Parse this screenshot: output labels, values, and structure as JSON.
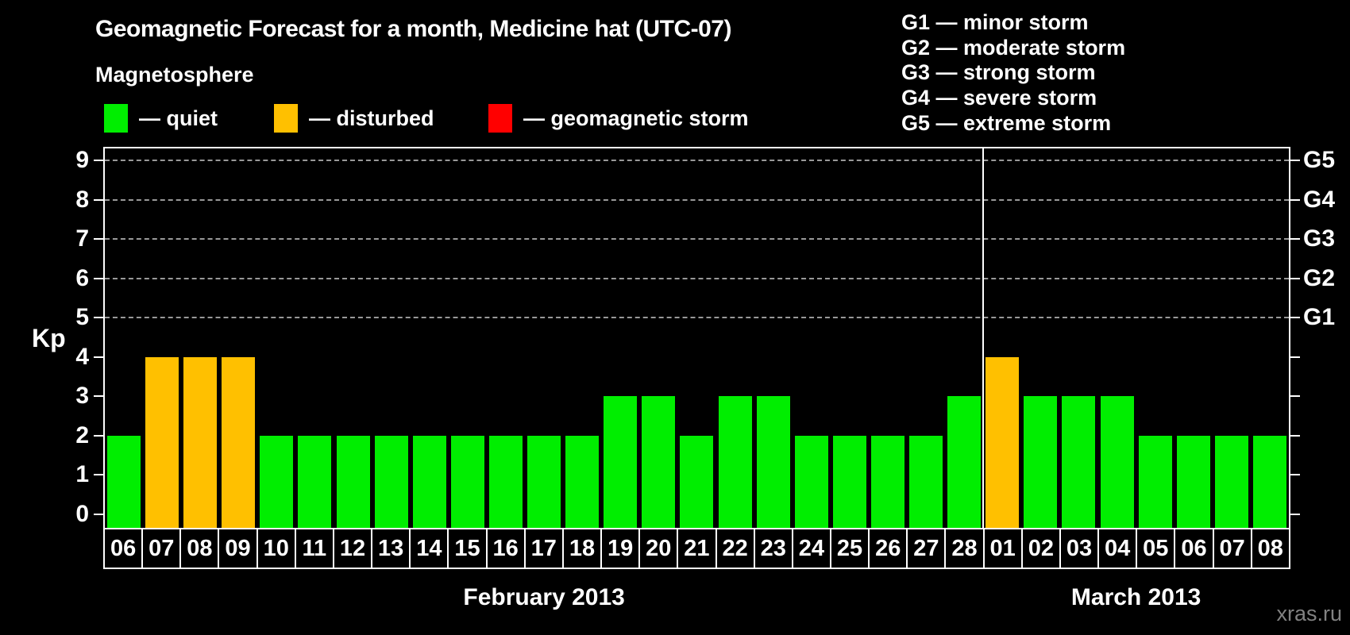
{
  "header": {
    "title": "Geomagnetic Forecast for a month, Medicine hat (UTC-07)",
    "subtitle": "Magnetosphere"
  },
  "legend": {
    "items": [
      {
        "status": "quiet",
        "label": "— quiet",
        "color": "#00ee00"
      },
      {
        "status": "disturbed",
        "label": "— disturbed",
        "color": "#ffc000"
      },
      {
        "status": "storm",
        "label": "— geomagnetic storm",
        "color": "#ff0000"
      }
    ]
  },
  "storm_scale": {
    "items": [
      "G1 — minor storm",
      "G2 — moderate storm",
      "G3 — strong storm",
      "G4 — severe storm",
      "G5 — extreme storm"
    ]
  },
  "chart_data": {
    "type": "bar",
    "title": "Geomagnetic Forecast for a month, Medicine hat (UTC-07)",
    "ylabel": "Kp",
    "ylim": [
      0,
      9
    ],
    "yticks": [
      0,
      1,
      2,
      3,
      4,
      5,
      6,
      7,
      8,
      9
    ],
    "gridlines_at": [
      5,
      6,
      7,
      8,
      9
    ],
    "grid_on": true,
    "grid_color": "#999999",
    "axis_color": "#ffffff",
    "background": "#000000",
    "right_axis": [
      {
        "kp": 5,
        "label": "G1"
      },
      {
        "kp": 6,
        "label": "G2"
      },
      {
        "kp": 7,
        "label": "G3"
      },
      {
        "kp": 8,
        "label": "G4"
      },
      {
        "kp": 9,
        "label": "G5"
      }
    ],
    "months": [
      {
        "label": "February 2013",
        "days": 23
      },
      {
        "label": "March 2013",
        "days": 8
      }
    ],
    "bars": [
      {
        "day": "06",
        "month": "February 2013",
        "kp": 2,
        "status": "quiet"
      },
      {
        "day": "07",
        "month": "February 2013",
        "kp": 4,
        "status": "disturbed"
      },
      {
        "day": "08",
        "month": "February 2013",
        "kp": 4,
        "status": "disturbed"
      },
      {
        "day": "09",
        "month": "February 2013",
        "kp": 4,
        "status": "disturbed"
      },
      {
        "day": "10",
        "month": "February 2013",
        "kp": 2,
        "status": "quiet"
      },
      {
        "day": "11",
        "month": "February 2013",
        "kp": 2,
        "status": "quiet"
      },
      {
        "day": "12",
        "month": "February 2013",
        "kp": 2,
        "status": "quiet"
      },
      {
        "day": "13",
        "month": "February 2013",
        "kp": 2,
        "status": "quiet"
      },
      {
        "day": "14",
        "month": "February 2013",
        "kp": 2,
        "status": "quiet"
      },
      {
        "day": "15",
        "month": "February 2013",
        "kp": 2,
        "status": "quiet"
      },
      {
        "day": "16",
        "month": "February 2013",
        "kp": 2,
        "status": "quiet"
      },
      {
        "day": "17",
        "month": "February 2013",
        "kp": 2,
        "status": "quiet"
      },
      {
        "day": "18",
        "month": "February 2013",
        "kp": 2,
        "status": "quiet"
      },
      {
        "day": "19",
        "month": "February 2013",
        "kp": 3,
        "status": "quiet"
      },
      {
        "day": "20",
        "month": "February 2013",
        "kp": 3,
        "status": "quiet"
      },
      {
        "day": "21",
        "month": "February 2013",
        "kp": 2,
        "status": "quiet"
      },
      {
        "day": "22",
        "month": "February 2013",
        "kp": 3,
        "status": "quiet"
      },
      {
        "day": "23",
        "month": "February 2013",
        "kp": 3,
        "status": "quiet"
      },
      {
        "day": "24",
        "month": "February 2013",
        "kp": 2,
        "status": "quiet"
      },
      {
        "day": "25",
        "month": "February 2013",
        "kp": 2,
        "status": "quiet"
      },
      {
        "day": "26",
        "month": "February 2013",
        "kp": 2,
        "status": "quiet"
      },
      {
        "day": "27",
        "month": "February 2013",
        "kp": 2,
        "status": "quiet"
      },
      {
        "day": "28",
        "month": "February 2013",
        "kp": 3,
        "status": "quiet"
      },
      {
        "day": "01",
        "month": "March 2013",
        "kp": 4,
        "status": "disturbed"
      },
      {
        "day": "02",
        "month": "March 2013",
        "kp": 3,
        "status": "quiet"
      },
      {
        "day": "03",
        "month": "March 2013",
        "kp": 3,
        "status": "quiet"
      },
      {
        "day": "04",
        "month": "March 2013",
        "kp": 3,
        "status": "quiet"
      },
      {
        "day": "05",
        "month": "March 2013",
        "kp": 2,
        "status": "quiet"
      },
      {
        "day": "06",
        "month": "March 2013",
        "kp": 2,
        "status": "quiet"
      },
      {
        "day": "07",
        "month": "March 2013",
        "kp": 2,
        "status": "quiet"
      },
      {
        "day": "08",
        "month": "March 2013",
        "kp": 2,
        "status": "quiet"
      }
    ]
  },
  "watermark": "xras.ru"
}
